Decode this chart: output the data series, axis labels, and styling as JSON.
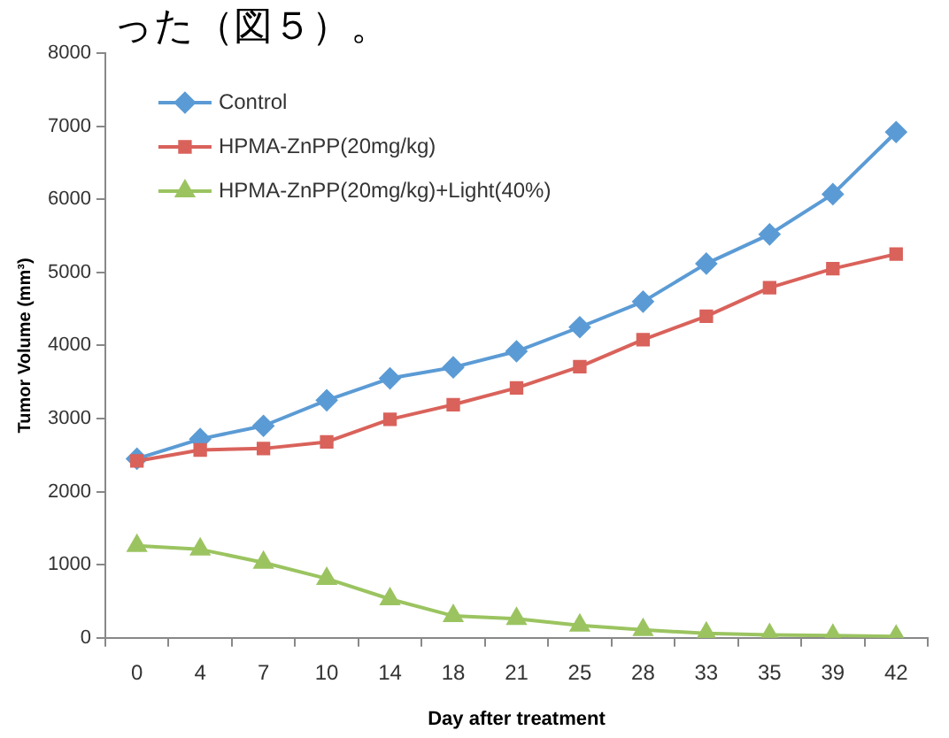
{
  "chart_data": {
    "type": "line",
    "xlabel": "Day after treatment",
    "ylabel": "Tumor Volume (mm³)",
    "annotations": [
      "った（図５）。"
    ],
    "categories": [
      "0",
      "4",
      "7",
      "10",
      "14",
      "18",
      "21",
      "25",
      "28",
      "33",
      "35",
      "39",
      "42"
    ],
    "ylim": [
      0,
      8000
    ],
    "yticks": [
      0,
      1000,
      2000,
      3000,
      4000,
      5000,
      6000,
      7000,
      8000
    ],
    "grid": false,
    "legend": "top left",
    "line_style": "solid",
    "series": [
      {
        "name": "Control",
        "color": "#5b9bd5",
        "marker": "diamond",
        "values": [
          2450,
          2720,
          2900,
          3250,
          3550,
          3700,
          3920,
          4250,
          4600,
          5120,
          5520,
          6070,
          6920
        ]
      },
      {
        "name": "HPMA-ZnPP(20mg/kg)",
        "color": "#d9625b",
        "marker": "square",
        "values": [
          2420,
          2570,
          2590,
          2680,
          2990,
          3190,
          3420,
          3710,
          4080,
          4400,
          4790,
          5050,
          5250
        ]
      },
      {
        "name": "HPMA-ZnPP(20mg/kg)+Light(40%)",
        "color": "#9bc460",
        "marker": "triangle",
        "values": [
          1260,
          1210,
          1030,
          810,
          530,
          300,
          260,
          170,
          110,
          60,
          40,
          30,
          20
        ]
      }
    ]
  }
}
